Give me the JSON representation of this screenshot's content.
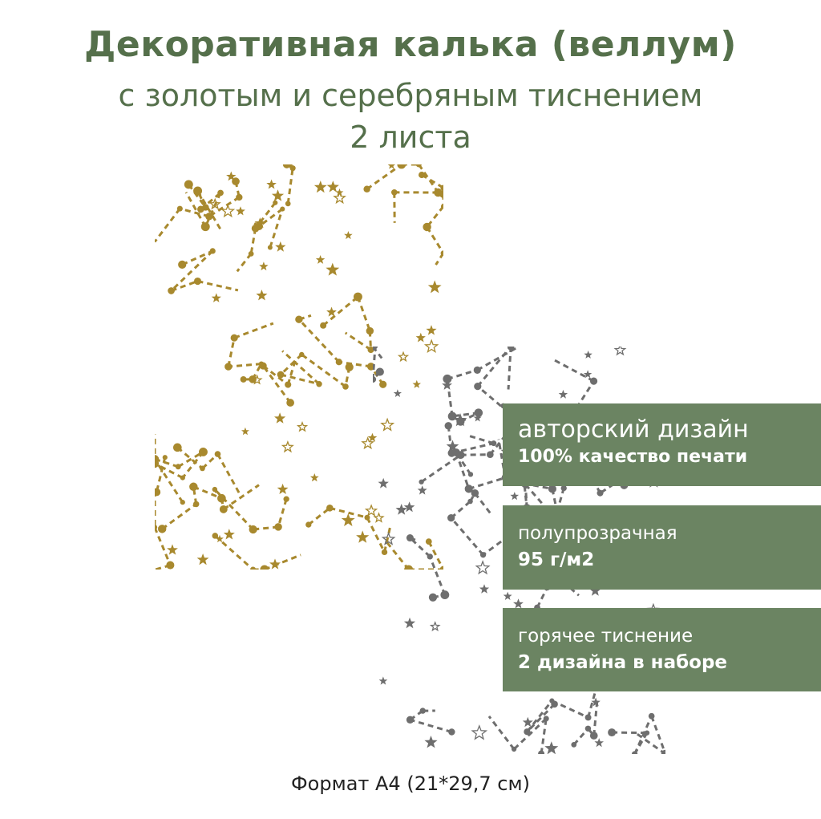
{
  "title": "Декоративная калька (веллум)",
  "subtitle": "с золотым и серебряным тиснением",
  "count": "2 листа",
  "colors": {
    "title": "#55704b",
    "box": "#6b8462",
    "gold": "#a8892e",
    "silver": "#6e6e6e"
  },
  "features": [
    {
      "line1": "авторский дизайн",
      "line2": "100% качество печати"
    },
    {
      "line1": "полупрозрачная",
      "line2": "95 г/м2"
    },
    {
      "line1": "горячее тиснение",
      "line2": "2 дизайна в наборе"
    }
  ],
  "footer": "Формат А4 (21*29,7 см)"
}
